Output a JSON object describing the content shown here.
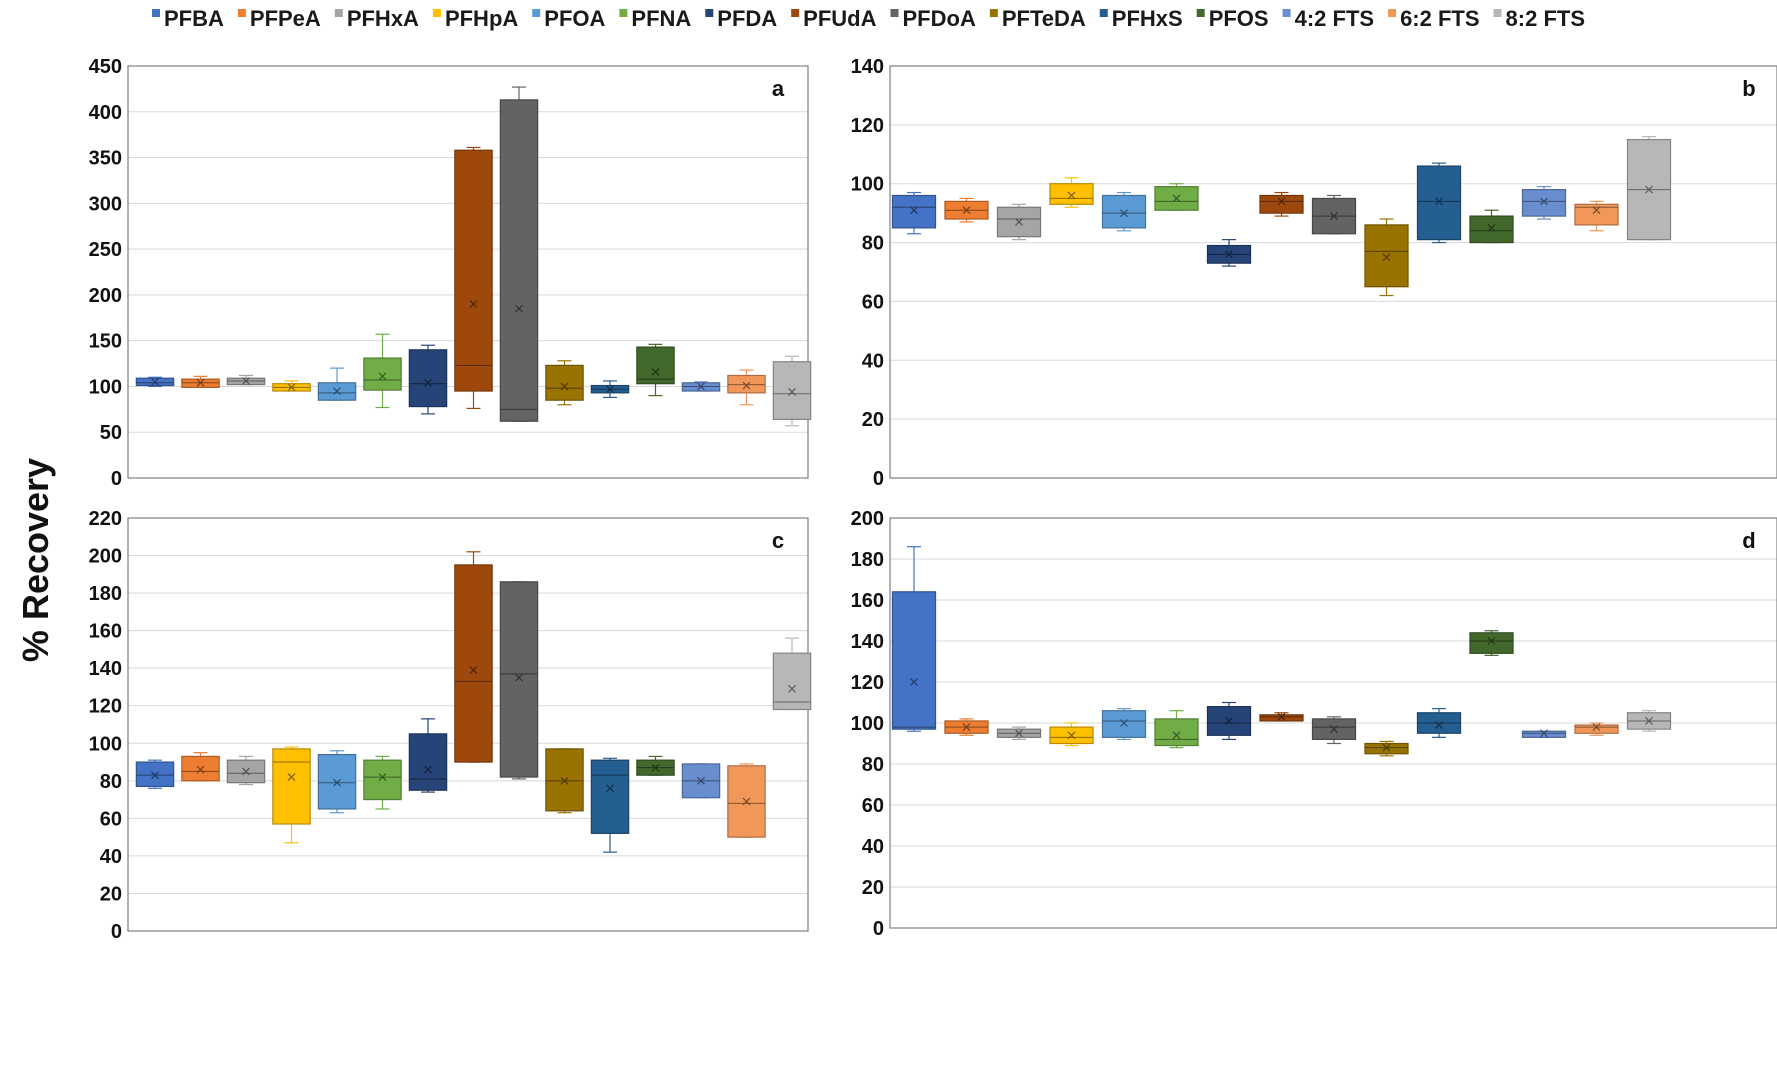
{
  "figure": {
    "ylabel": "% Recovery"
  },
  "series": [
    {
      "name": "PFBA",
      "color": "#4472C4"
    },
    {
      "name": "PFPeA",
      "color": "#ED7D31"
    },
    {
      "name": "PFHxA",
      "color": "#A5A5A5"
    },
    {
      "name": "PFHpA",
      "color": "#FFC000"
    },
    {
      "name": "PFOA",
      "color": "#5B9BD5"
    },
    {
      "name": "PFNA",
      "color": "#70AD47"
    },
    {
      "name": "PFDA",
      "color": "#264478"
    },
    {
      "name": "PFUdA",
      "color": "#9E480E"
    },
    {
      "name": "PFDoA",
      "color": "#636363"
    },
    {
      "name": "PFTeDA",
      "color": "#997300"
    },
    {
      "name": "PFHxS",
      "color": "#255E91"
    },
    {
      "name": "PFOS",
      "color": "#43682B"
    },
    {
      "name": "4:2 FTS",
      "color": "#698ED0"
    },
    {
      "name": "6:2 FTS",
      "color": "#F1975A"
    },
    {
      "name": "8:2 FTS",
      "color": "#B7B7B7"
    }
  ],
  "chart_data": [
    {
      "type": "box",
      "panel": "a",
      "ylim": [
        0,
        450
      ],
      "yticks": [
        "0",
        "50",
        "100",
        "150",
        "200",
        "250",
        "300",
        "350",
        "400",
        "450"
      ],
      "boxes": [
        {
          "series": "PFBA",
          "min": 100,
          "q1": 101,
          "median": 104,
          "q3": 109,
          "max": 110,
          "mean": 105
        },
        {
          "series": "PFPeA",
          "min": 99,
          "q1": 99,
          "median": 104,
          "q3": 108,
          "max": 111,
          "mean": 104
        },
        {
          "series": "PFHxA",
          "min": 102,
          "q1": 102,
          "median": 106,
          "q3": 109,
          "max": 112,
          "mean": 106
        },
        {
          "series": "PFHpA",
          "min": 95,
          "q1": 95,
          "median": 99,
          "q3": 103,
          "max": 106,
          "mean": 99
        },
        {
          "series": "PFOA",
          "min": 85,
          "q1": 85,
          "median": 93,
          "q3": 104,
          "max": 120,
          "mean": 95
        },
        {
          "series": "PFNA",
          "min": 77,
          "q1": 96,
          "median": 107,
          "q3": 131,
          "max": 157,
          "mean": 111
        },
        {
          "series": "PFDA",
          "min": 70,
          "q1": 78,
          "median": 103,
          "q3": 140,
          "max": 145,
          "mean": 104
        },
        {
          "series": "PFUdA",
          "min": 76,
          "q1": 95,
          "median": 123,
          "q3": 358,
          "max": 361,
          "mean": 190
        },
        {
          "series": "PFDoA",
          "min": 62,
          "q1": 62,
          "median": 75,
          "q3": 413,
          "max": 427,
          "mean": 185
        },
        {
          "series": "PFTeDA",
          "min": 80,
          "q1": 85,
          "median": 98,
          "q3": 123,
          "max": 128,
          "mean": 100
        },
        {
          "series": "PFHxS",
          "min": 88,
          "q1": 93,
          "median": 97,
          "q3": 101,
          "max": 106,
          "mean": 97
        },
        {
          "series": "PFOS",
          "min": 90,
          "q1": 103,
          "median": 108,
          "q3": 143,
          "max": 146,
          "mean": 116
        },
        {
          "series": "4:2 FTS",
          "min": 95,
          "q1": 95,
          "median": 100,
          "q3": 104,
          "max": 105,
          "mean": 100
        },
        {
          "series": "6:2 FTS",
          "min": 80,
          "q1": 93,
          "median": 102,
          "q3": 112,
          "max": 118,
          "mean": 101
        },
        {
          "series": "8:2 FTS",
          "min": 57,
          "q1": 64,
          "median": 92,
          "q3": 127,
          "max": 133,
          "mean": 94
        }
      ]
    },
    {
      "type": "box",
      "panel": "b",
      "ylim": [
        0,
        140
      ],
      "yticks": [
        "0",
        "20",
        "40",
        "60",
        "80",
        "100",
        "120",
        "140"
      ],
      "boxes": [
        {
          "series": "PFBA",
          "min": 83,
          "q1": 85,
          "median": 92,
          "q3": 96,
          "max": 97,
          "mean": 91
        },
        {
          "series": "PFPeA",
          "min": 87,
          "q1": 88,
          "median": 91,
          "q3": 94,
          "max": 95,
          "mean": 91
        },
        {
          "series": "PFHxA",
          "min": 81,
          "q1": 82,
          "median": 88,
          "q3": 92,
          "max": 93,
          "mean": 87
        },
        {
          "series": "PFHpA",
          "min": 92,
          "q1": 93,
          "median": 95,
          "q3": 100,
          "max": 102,
          "mean": 96
        },
        {
          "series": "PFOA",
          "min": 84,
          "q1": 85,
          "median": 90,
          "q3": 96,
          "max": 97,
          "mean": 90
        },
        {
          "series": "PFNA",
          "min": 91,
          "q1": 91,
          "median": 94,
          "q3": 99,
          "max": 100,
          "mean": 95
        },
        {
          "series": "PFDA",
          "min": 72,
          "q1": 73,
          "median": 76,
          "q3": 79,
          "max": 81,
          "mean": 76
        },
        {
          "series": "PFUdA",
          "min": 89,
          "q1": 90,
          "median": 94,
          "q3": 96,
          "max": 97,
          "mean": 94
        },
        {
          "series": "PFDoA",
          "min": 83,
          "q1": 83,
          "median": 89,
          "q3": 95,
          "max": 96,
          "mean": 89
        },
        {
          "series": "PFTeDA",
          "min": 62,
          "q1": 65,
          "median": 77,
          "q3": 86,
          "max": 88,
          "mean": 75
        },
        {
          "series": "PFHxS",
          "min": 80,
          "q1": 81,
          "median": 94,
          "q3": 106,
          "max": 107,
          "mean": 94
        },
        {
          "series": "PFOS",
          "min": 80,
          "q1": 80,
          "median": 84,
          "q3": 89,
          "max": 91,
          "mean": 85
        },
        {
          "series": "4:2 FTS",
          "min": 88,
          "q1": 89,
          "median": 94,
          "q3": 98,
          "max": 99,
          "mean": 94
        },
        {
          "series": "6:2 FTS",
          "min": 84,
          "q1": 86,
          "median": 92,
          "q3": 93,
          "max": 94,
          "mean": 91
        },
        {
          "series": "8:2 FTS",
          "min": 81,
          "q1": 81,
          "median": 98,
          "q3": 115,
          "max": 116,
          "mean": 98
        }
      ]
    },
    {
      "type": "box",
      "panel": "c",
      "ylim": [
        0,
        220
      ],
      "yticks": [
        "0",
        "20",
        "40",
        "60",
        "80",
        "100",
        "120",
        "140",
        "160",
        "180",
        "200",
        "220"
      ],
      "boxes": [
        {
          "series": "PFBA",
          "min": 76,
          "q1": 77,
          "median": 83,
          "q3": 90,
          "max": 91,
          "mean": 83
        },
        {
          "series": "PFPeA",
          "min": 80,
          "q1": 80,
          "median": 85,
          "q3": 93,
          "max": 95,
          "mean": 86
        },
        {
          "series": "PFHxA",
          "min": 78,
          "q1": 79,
          "median": 84,
          "q3": 91,
          "max": 93,
          "mean": 85
        },
        {
          "series": "PFHpA",
          "min": 47,
          "q1": 57,
          "median": 90,
          "q3": 97,
          "max": 98,
          "mean": 82
        },
        {
          "series": "PFOA",
          "min": 63,
          "q1": 65,
          "median": 79,
          "q3": 94,
          "max": 96,
          "mean": 79
        },
        {
          "series": "PFNA",
          "min": 65,
          "q1": 70,
          "median": 82,
          "q3": 91,
          "max": 93,
          "mean": 82
        },
        {
          "series": "PFDA",
          "min": 74,
          "q1": 75,
          "median": 81,
          "q3": 105,
          "max": 113,
          "mean": 86
        },
        {
          "series": "PFUdA",
          "min": 90,
          "q1": 90,
          "median": 133,
          "q3": 195,
          "max": 202,
          "mean": 139
        },
        {
          "series": "PFDoA",
          "min": 81,
          "q1": 82,
          "median": 137,
          "q3": 186,
          "max": 186,
          "mean": 135
        },
        {
          "series": "PFTeDA",
          "min": 63,
          "q1": 64,
          "median": 80,
          "q3": 97,
          "max": 97,
          "mean": 80
        },
        {
          "series": "PFHxS",
          "min": 42,
          "q1": 52,
          "median": 83,
          "q3": 91,
          "max": 92,
          "mean": 76
        },
        {
          "series": "PFOS",
          "min": 83,
          "q1": 83,
          "median": 87,
          "q3": 91,
          "max": 93,
          "mean": 87
        },
        {
          "series": "4:2 FTS",
          "min": 71,
          "q1": 71,
          "median": 80,
          "q3": 89,
          "max": 89,
          "mean": 80
        },
        {
          "series": "6:2 FTS",
          "min": 50,
          "q1": 50,
          "median": 68,
          "q3": 88,
          "max": 89,
          "mean": 69
        },
        {
          "series": "8:2 FTS",
          "min": 118,
          "q1": 118,
          "median": 122,
          "q3": 148,
          "max": 156,
          "mean": 129
        }
      ]
    },
    {
      "type": "box",
      "panel": "d",
      "ylim": [
        0,
        200
      ],
      "yticks": [
        "0",
        "20",
        "40",
        "60",
        "80",
        "100",
        "120",
        "140",
        "160",
        "180",
        "200"
      ],
      "boxes": [
        {
          "series": "PFBA",
          "min": 96,
          "q1": 97,
          "median": 98,
          "q3": 164,
          "max": 186,
          "mean": 120
        },
        {
          "series": "PFPeA",
          "min": 94,
          "q1": 95,
          "median": 98,
          "q3": 101,
          "max": 102,
          "mean": 98
        },
        {
          "series": "PFHxA",
          "min": 92,
          "q1": 93,
          "median": 95,
          "q3": 97,
          "max": 98,
          "mean": 95
        },
        {
          "series": "PFHpA",
          "min": 89,
          "q1": 90,
          "median": 93,
          "q3": 98,
          "max": 100,
          "mean": 94
        },
        {
          "series": "PFOA",
          "min": 92,
          "q1": 93,
          "median": 101,
          "q3": 106,
          "max": 107,
          "mean": 100
        },
        {
          "series": "PFNA",
          "min": 88,
          "q1": 89,
          "median": 92,
          "q3": 102,
          "max": 106,
          "mean": 94
        },
        {
          "series": "PFDA",
          "min": 92,
          "q1": 94,
          "median": 100,
          "q3": 108,
          "max": 110,
          "mean": 101
        },
        {
          "series": "PFUdA",
          "min": 101,
          "q1": 101,
          "median": 103,
          "q3": 104,
          "max": 105,
          "mean": 103
        },
        {
          "series": "PFDoA",
          "min": 90,
          "q1": 92,
          "median": 98,
          "q3": 102,
          "max": 103,
          "mean": 97
        },
        {
          "series": "PFTeDA",
          "min": 84,
          "q1": 85,
          "median": 88,
          "q3": 90,
          "max": 91,
          "mean": 88
        },
        {
          "series": "PFHxS",
          "min": 93,
          "q1": 95,
          "median": 100,
          "q3": 105,
          "max": 107,
          "mean": 99
        },
        {
          "series": "PFOS",
          "min": 133,
          "q1": 134,
          "median": 140,
          "q3": 144,
          "max": 145,
          "mean": 140
        },
        {
          "series": "4:2 FTS",
          "min": 93,
          "q1": 93,
          "median": 95,
          "q3": 96,
          "max": 96,
          "mean": 95
        },
        {
          "series": "6:2 FTS",
          "min": 94,
          "q1": 95,
          "median": 98,
          "q3": 99,
          "max": 100,
          "mean": 98
        },
        {
          "series": "8:2 FTS",
          "min": 96,
          "q1": 97,
          "median": 101,
          "q3": 105,
          "max": 106,
          "mean": 101
        }
      ]
    }
  ]
}
